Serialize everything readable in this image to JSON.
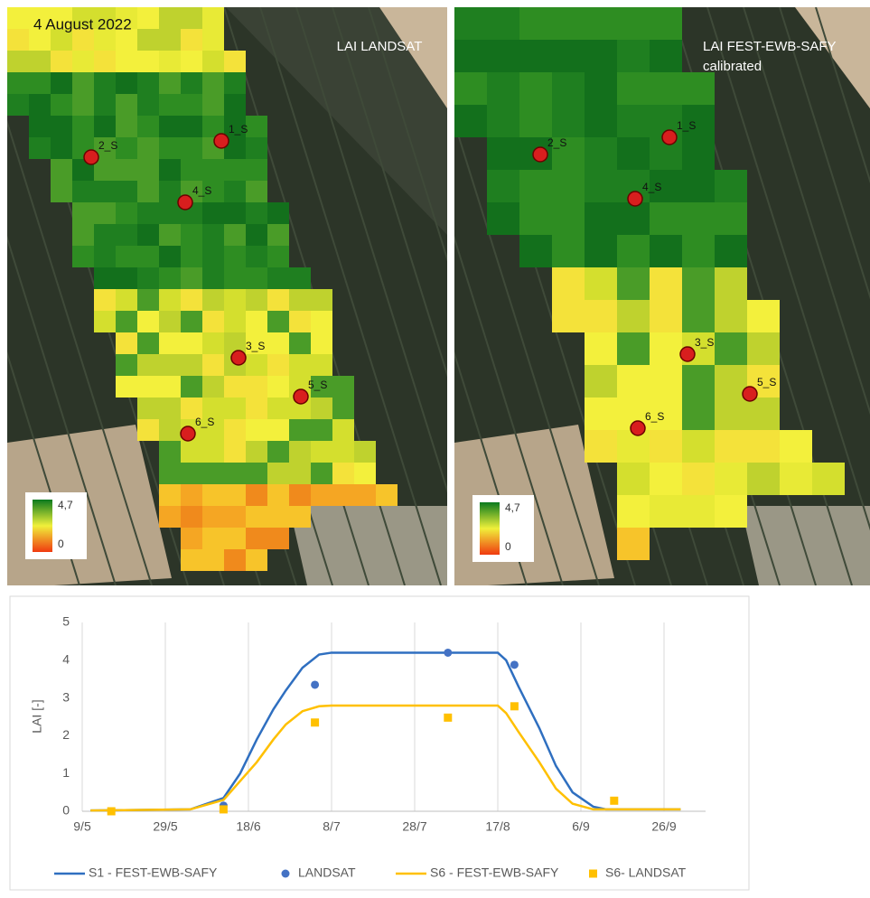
{
  "maps": [
    {
      "date": "4 August 2022",
      "title": [
        "LAI LANDSAT"
      ],
      "points": [
        "1_S",
        "2_S",
        "3_S",
        "4_S",
        "5_S",
        "6_S"
      ],
      "legend": [
        "4,7",
        "0"
      ]
    },
    {
      "title": [
        "LAI FEST-EWB-SAFY",
        "calibrated"
      ],
      "points": [
        "1_S",
        "2_S",
        "3_S",
        "4_S",
        "5_S",
        "6_S"
      ],
      "legend": [
        "4,7",
        "0"
      ]
    }
  ],
  "chart_data": {
    "type": "line",
    "y_label": "LAI [-]",
    "xlim": [
      "9/5",
      "6/10"
    ],
    "xticks": [
      "9/5",
      "29/5",
      "18/6",
      "8/7",
      "28/7",
      "17/8",
      "6/9",
      "26/9"
    ],
    "ylim": [
      0,
      5
    ],
    "yticks": [
      0,
      1,
      2,
      3,
      4,
      5
    ],
    "grid": "x",
    "series": [
      {
        "name": "S1 - FEST-EWB-SAFY",
        "color": "#2f6fc0",
        "mode": "line",
        "x": [
          "11/5",
          "4/6",
          "12/6",
          "16/6",
          "20/6",
          "24/6",
          "27/6",
          "1/7",
          "5/7",
          "8/7",
          "17/8",
          "19/8",
          "22/8",
          "27/8",
          "31/8",
          "4/9",
          "9/9",
          "12/9",
          "30/9"
        ],
        "values": [
          0.02,
          0.05,
          0.35,
          1.0,
          1.9,
          2.7,
          3.2,
          3.8,
          4.15,
          4.2,
          4.2,
          4.0,
          3.3,
          2.2,
          1.2,
          0.5,
          0.12,
          0.05,
          0.05
        ]
      },
      {
        "name": "LANDSAT",
        "color": "#4472c4",
        "mode": "markers",
        "marker": "circle",
        "x": [
          "12/6",
          "4/7",
          "5/8",
          "21/8"
        ],
        "values": [
          0.15,
          3.35,
          4.2,
          3.88
        ]
      },
      {
        "name": "S6 - FEST-EWB-SAFY",
        "color": "#ffc000",
        "mode": "line",
        "x": [
          "11/5",
          "4/6",
          "12/6",
          "16/6",
          "20/6",
          "24/6",
          "27/6",
          "1/7",
          "5/7",
          "8/7",
          "17/8",
          "19/8",
          "22/8",
          "27/8",
          "31/8",
          "4/9",
          "9/9",
          "12/9",
          "30/9"
        ],
        "values": [
          0.02,
          0.05,
          0.3,
          0.8,
          1.3,
          1.9,
          2.3,
          2.65,
          2.78,
          2.8,
          2.8,
          2.6,
          2.1,
          1.3,
          0.6,
          0.2,
          0.05,
          0.05,
          0.05
        ]
      },
      {
        "name": "S6- LANDSAT",
        "color": "#ffc000",
        "mode": "markers",
        "marker": "square",
        "x": [
          "16/5",
          "12/6",
          "4/7",
          "5/8",
          "21/8",
          "14/9"
        ],
        "values": [
          0.0,
          0.05,
          2.35,
          2.48,
          2.78,
          0.28
        ]
      }
    ]
  }
}
